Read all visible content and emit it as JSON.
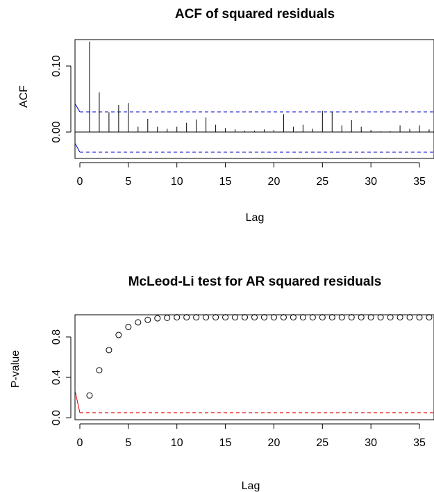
{
  "chart_data": [
    {
      "type": "bar",
      "title": "ACF of squared residuals",
      "xlabel": "Lag",
      "ylabel": "ACF",
      "xlim": [
        -0.5,
        36.5
      ],
      "ylim": [
        -0.04,
        0.14
      ],
      "xticks": [
        0,
        5,
        10,
        15,
        20,
        25,
        30,
        35
      ],
      "yticks": [
        0.0,
        0.1
      ],
      "ytick_labels": [
        "0.00",
        "0.10"
      ],
      "lags": [
        1,
        2,
        3,
        4,
        5,
        6,
        7,
        8,
        9,
        10,
        11,
        12,
        13,
        14,
        15,
        16,
        17,
        18,
        19,
        20,
        21,
        22,
        23,
        24,
        25,
        26,
        27,
        28,
        29,
        30,
        31,
        32,
        33,
        34,
        35,
        36
      ],
      "values": [
        0.137,
        0.06,
        0.03,
        0.041,
        0.044,
        0.008,
        0.02,
        0.008,
        0.005,
        0.008,
        0.014,
        0.019,
        0.022,
        0.011,
        0.006,
        0.004,
        0.002,
        0.002,
        0.004,
        0.003,
        0.027,
        0.008,
        0.011,
        0.005,
        0.032,
        0.03,
        0.01,
        0.018,
        0.008,
        0.003,
        0.001,
        0.001,
        0.01,
        0.005,
        0.01,
        0.004
      ],
      "confidence_band": 0.0305,
      "confidence_color": "#0000cc",
      "grid": false,
      "legend": "none"
    },
    {
      "type": "scatter",
      "title": "McLeod-Li test for AR squared residuals",
      "xlabel": "Lag",
      "ylabel": "P-value",
      "xlim": [
        -0.5,
        36.5
      ],
      "ylim": [
        -0.02,
        1.02
      ],
      "xticks": [
        0,
        5,
        10,
        15,
        20,
        25,
        30,
        35
      ],
      "yticks": [
        0.0,
        0.4,
        0.8
      ],
      "ytick_labels": [
        "0.0",
        "0.4",
        "0.8"
      ],
      "x": [
        1,
        2,
        3,
        4,
        5,
        6,
        7,
        8,
        9,
        10,
        11,
        12,
        13,
        14,
        15,
        16,
        17,
        18,
        19,
        20,
        21,
        22,
        23,
        24,
        25,
        26,
        27,
        28,
        29,
        30,
        31,
        32,
        33,
        34,
        35,
        36
      ],
      "y": [
        0.22,
        0.47,
        0.67,
        0.82,
        0.9,
        0.945,
        0.97,
        0.985,
        0.99,
        0.995,
        0.995,
        0.995,
        0.995,
        0.995,
        0.995,
        0.995,
        0.995,
        0.995,
        0.995,
        0.995,
        0.995,
        0.995,
        0.995,
        0.995,
        0.995,
        0.995,
        0.995,
        0.995,
        0.995,
        0.995,
        0.995,
        0.995,
        0.995,
        0.995,
        0.995,
        0.995
      ],
      "reference_line": 0.05,
      "reference_color": "#dd0000",
      "grid": false,
      "legend": "none"
    }
  ]
}
